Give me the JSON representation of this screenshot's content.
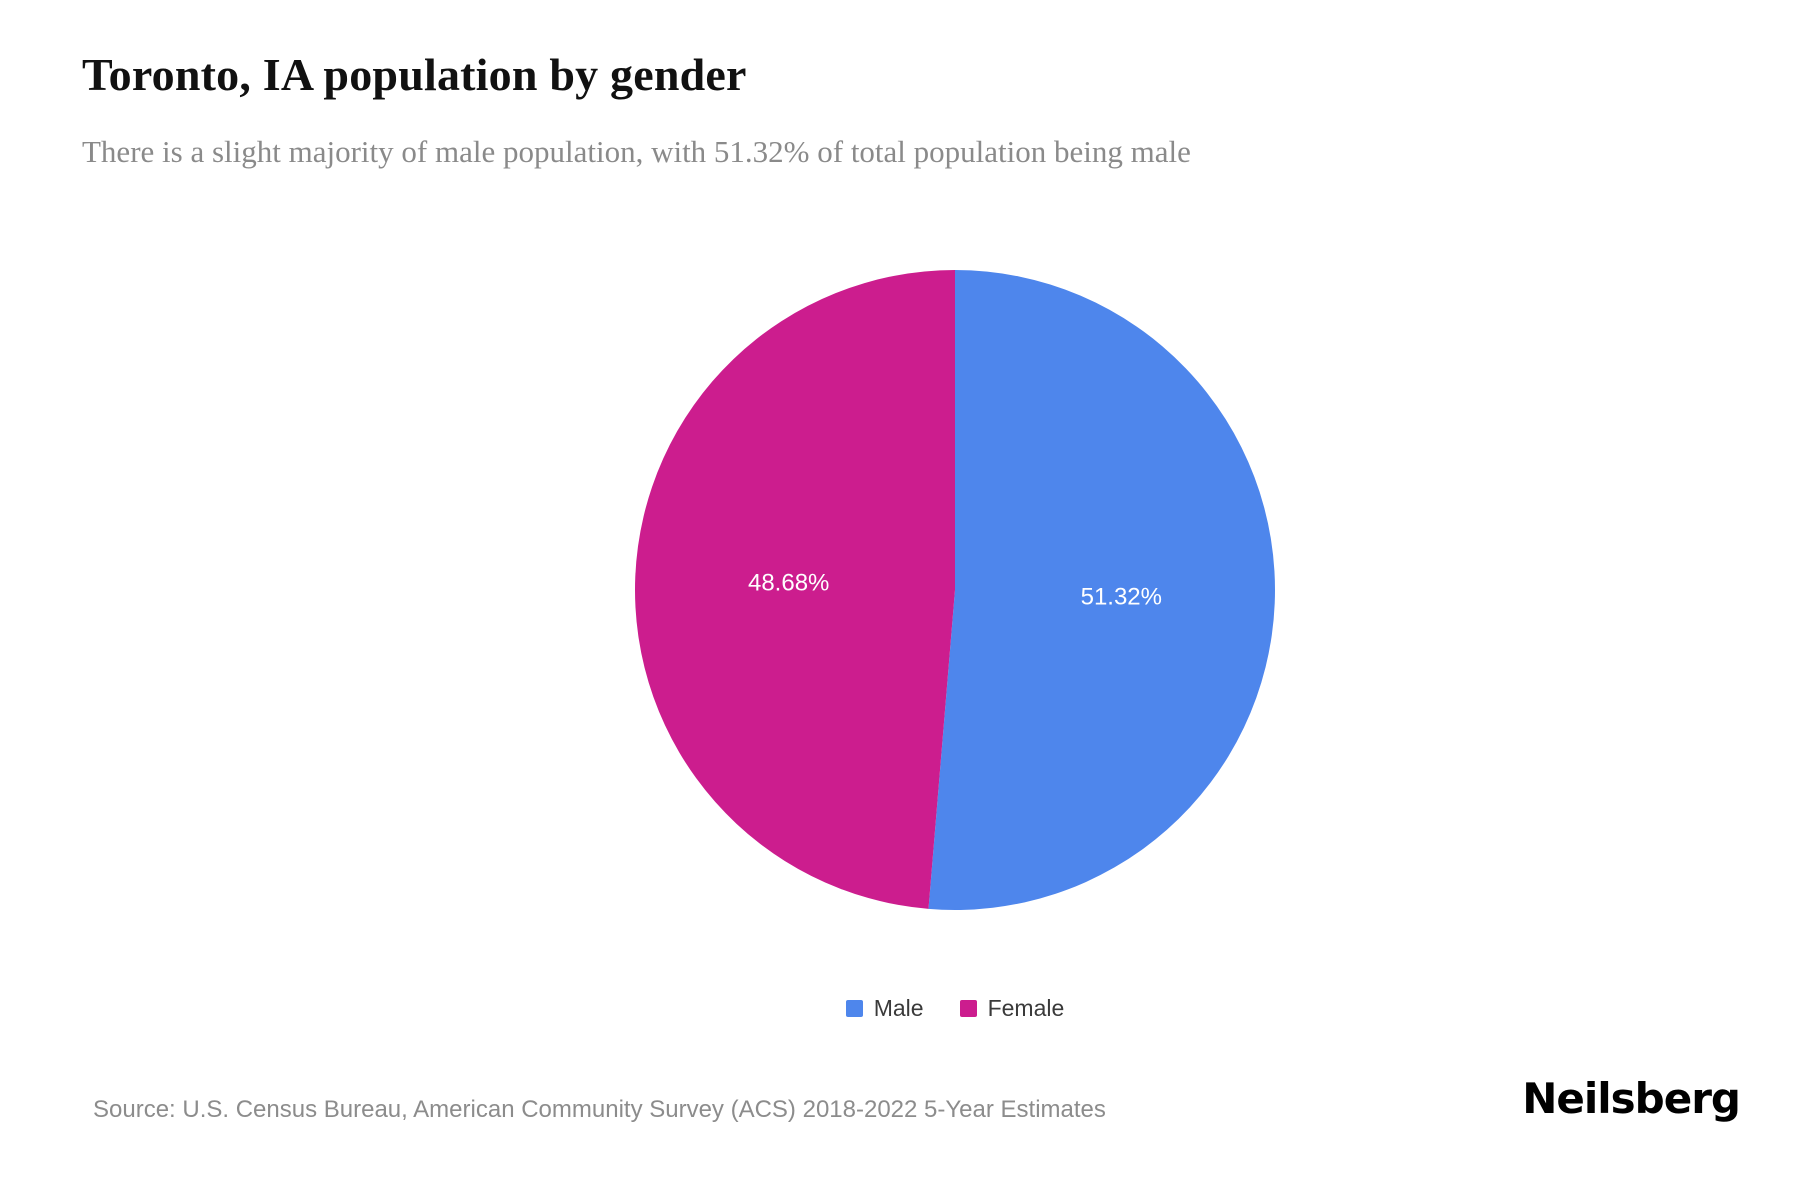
{
  "header": {
    "title": "Toronto, IA population by gender",
    "subtitle": "There is a slight majority of male population, with 51.32% of total population being male"
  },
  "chart_data": {
    "type": "pie",
    "title": "Toronto, IA population by gender",
    "start_angle_deg": -90,
    "direction": "clockwise",
    "slices": [
      {
        "label": "Male",
        "value": 51.32,
        "display_label": "51.32%",
        "color": "#4e86ec"
      },
      {
        "label": "Female",
        "value": 48.68,
        "display_label": "48.68%",
        "color": "#cc1d8e"
      }
    ],
    "value_label_color": "#ffffff",
    "legend_position": "bottom",
    "legend_entries": [
      "Male",
      "Female"
    ]
  },
  "footer": {
    "source": "Source: U.S. Census Bureau, American Community Survey (ACS) 2018-2022 5-Year Estimates",
    "brand": "Neilsberg"
  }
}
